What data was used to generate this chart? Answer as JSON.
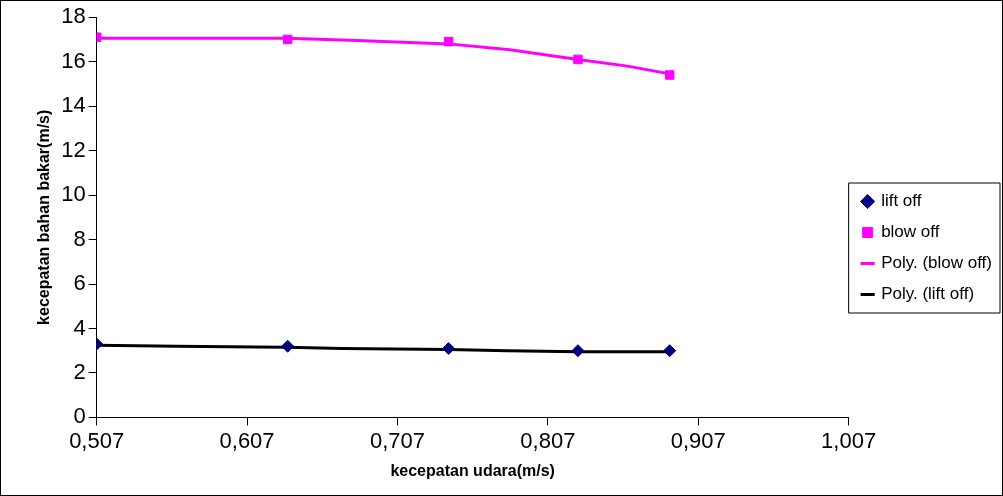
{
  "chart_data": {
    "type": "scatter",
    "xlabel": "kecepatan udara(m/s)",
    "ylabel": "kecepatan bahan bakar(m/s)",
    "xlim": [
      0.507,
      1.007
    ],
    "xticks": [
      {
        "value": 0.507,
        "label": "0,507"
      },
      {
        "value": 0.607,
        "label": "0,607"
      },
      {
        "value": 0.707,
        "label": "0,707"
      },
      {
        "value": 0.807,
        "label": "0,807"
      },
      {
        "value": 0.907,
        "label": "0,907"
      },
      {
        "value": 1.007,
        "label": "1,007"
      }
    ],
    "ylim": [
      0,
      18
    ],
    "yticks": [
      0,
      2,
      4,
      6,
      8,
      10,
      12,
      14,
      16,
      18
    ],
    "grid": false,
    "legend": "right",
    "series": [
      {
        "name": "lift off",
        "marker": "diamond",
        "color": "#000080",
        "x": [
          0.507,
          0.634,
          0.741,
          0.827,
          0.888
        ],
        "values": [
          3.3,
          3.2,
          3.1,
          3.0,
          3.0
        ]
      },
      {
        "name": "blow off",
        "marker": "square",
        "color": "#ff00ff",
        "x": [
          0.507,
          0.634,
          0.741,
          0.827,
          0.888
        ],
        "values": [
          17.1,
          17.0,
          16.9,
          16.1,
          15.4
        ]
      },
      {
        "name": "Poly. (blow off)",
        "type": "line",
        "marker": "none",
        "color": "#ff00ff",
        "x": [
          0.507,
          0.55,
          0.6,
          0.634,
          0.68,
          0.741,
          0.78,
          0.827,
          0.86,
          0.888
        ],
        "values": [
          17.05,
          17.05,
          17.05,
          17.05,
          16.95,
          16.8,
          16.55,
          16.1,
          15.8,
          15.45
        ]
      },
      {
        "name": "Poly. (lift off)",
        "type": "line",
        "marker": "none",
        "color": "#000000",
        "x": [
          0.507,
          0.56,
          0.634,
          0.67,
          0.741,
          0.78,
          0.827,
          0.888
        ],
        "values": [
          3.25,
          3.2,
          3.15,
          3.1,
          3.05,
          3.0,
          2.95,
          2.95
        ]
      }
    ]
  }
}
